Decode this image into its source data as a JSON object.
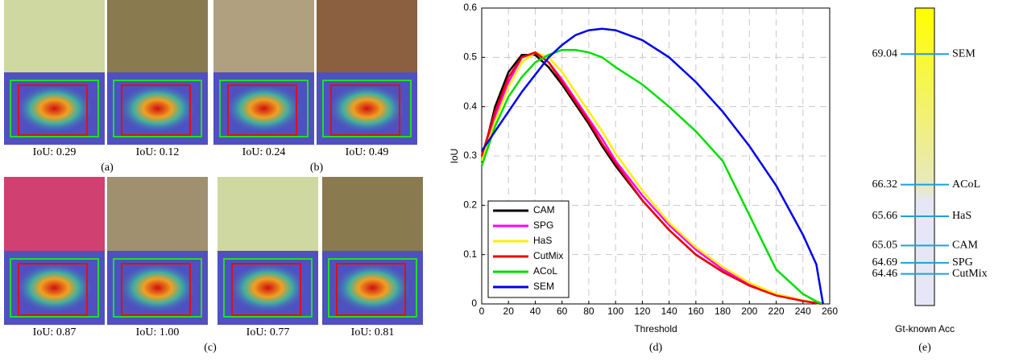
{
  "image_panels": [
    {
      "label": "(a)",
      "captions": [
        "IoU: 0.29",
        "IoU: 0.12"
      ]
    },
    {
      "label": "(b)",
      "captions": [
        "IoU: 0.24",
        "IoU: 0.49"
      ]
    },
    {
      "label": "(c)",
      "captions": [
        "IoU: 0.87",
        "IoU: 1.00",
        "IoU: 0.77",
        "IoU: 0.81"
      ]
    }
  ],
  "chart_data": [
    {
      "type": "line",
      "panel_label": "(d)",
      "x_label": "Threshold",
      "y_label": "IoU",
      "x": [
        0,
        10,
        20,
        30,
        40,
        50,
        60,
        70,
        80,
        90,
        100,
        120,
        140,
        160,
        180,
        200,
        220,
        240,
        250,
        255
      ],
      "series": [
        {
          "name": "CAM",
          "color": "#000000",
          "values": [
            0.29,
            0.4,
            0.47,
            0.505,
            0.505,
            0.48,
            0.445,
            0.405,
            0.365,
            0.32,
            0.28,
            0.21,
            0.15,
            0.1,
            0.065,
            0.038,
            0.018,
            0.006,
            0.002,
            0
          ]
        },
        {
          "name": "SPG",
          "color": "#ff00ff",
          "values": [
            0.29,
            0.38,
            0.45,
            0.5,
            0.51,
            0.49,
            0.455,
            0.415,
            0.375,
            0.335,
            0.29,
            0.22,
            0.16,
            0.11,
            0.07,
            0.04,
            0.02,
            0.007,
            0.002,
            0
          ]
        },
        {
          "name": "HaS",
          "color": "#ffee00",
          "values": [
            0.29,
            0.37,
            0.44,
            0.49,
            0.51,
            0.5,
            0.47,
            0.43,
            0.39,
            0.35,
            0.305,
            0.23,
            0.165,
            0.115,
            0.075,
            0.043,
            0.02,
            0.007,
            0.002,
            0
          ]
        },
        {
          "name": "CutMix",
          "color": "#ee0000",
          "values": [
            0.3,
            0.39,
            0.46,
            0.5,
            0.51,
            0.49,
            0.45,
            0.41,
            0.37,
            0.325,
            0.285,
            0.21,
            0.15,
            0.1,
            0.065,
            0.037,
            0.017,
            0.006,
            0.002,
            0
          ]
        },
        {
          "name": "ACoL",
          "color": "#00dd00",
          "values": [
            0.28,
            0.36,
            0.42,
            0.46,
            0.49,
            0.505,
            0.515,
            0.515,
            0.51,
            0.5,
            0.48,
            0.445,
            0.4,
            0.35,
            0.29,
            0.18,
            0.07,
            0.02,
            0.005,
            0
          ]
        },
        {
          "name": "SEM",
          "color": "#0000ee",
          "values": [
            0.31,
            0.35,
            0.39,
            0.43,
            0.465,
            0.5,
            0.525,
            0.545,
            0.555,
            0.558,
            0.555,
            0.535,
            0.5,
            0.45,
            0.39,
            0.32,
            0.24,
            0.14,
            0.08,
            0
          ]
        }
      ],
      "xlim": [
        0,
        260
      ],
      "xticks": [
        0,
        20,
        40,
        60,
        80,
        100,
        120,
        140,
        160,
        180,
        200,
        220,
        240,
        260
      ],
      "ylim": [
        0,
        0.6
      ],
      "yticks": [
        0,
        0.1,
        0.2,
        0.3,
        0.4,
        0.5,
        0.6
      ],
      "grid": true,
      "legend": "lower-left"
    },
    {
      "type": "scale",
      "panel_label": "(e)",
      "x_label": "Gt-known Acc",
      "categories": [
        "SEM",
        "ACoL",
        "HaS",
        "CAM",
        "SPG",
        "CutMix"
      ],
      "values": [
        69.04,
        66.32,
        65.66,
        65.05,
        64.69,
        64.46
      ],
      "ylim": [
        63.8,
        70.0
      ],
      "colors": [
        "#ffff00",
        "#e6e6f6"
      ],
      "tick_color": "#1ea0d8"
    }
  ]
}
